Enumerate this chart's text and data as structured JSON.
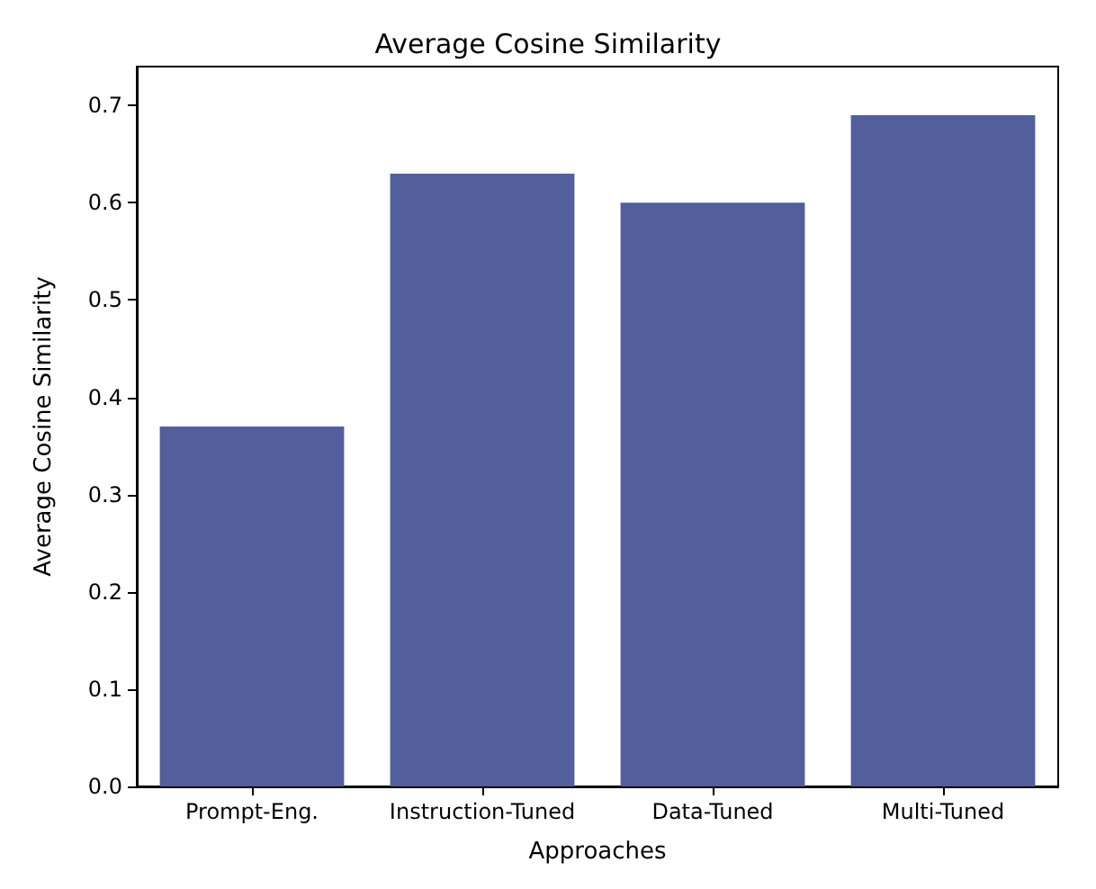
{
  "chart_data": {
    "type": "bar",
    "title": "Average Cosine Similarity",
    "xlabel": "Approaches",
    "ylabel": "Average Cosine Similarity",
    "categories": [
      "Prompt-Eng.",
      "Instruction-Tuned",
      "Data-Tuned",
      "Multi-Tuned"
    ],
    "values": [
      0.37,
      0.63,
      0.6,
      0.69
    ],
    "color": "#535f9c",
    "ylim": [
      0,
      0.74
    ],
    "yticks": [
      {
        "value": 0,
        "label": "0.0"
      },
      {
        "value": 0.1,
        "label": "0.1"
      },
      {
        "value": 0.2,
        "label": "0.2"
      },
      {
        "value": 0.3,
        "label": "0.3"
      },
      {
        "value": 0.4,
        "label": "0.4"
      },
      {
        "value": 0.5,
        "label": "0.5"
      },
      {
        "value": 0.6,
        "label": "0.6"
      },
      {
        "value": 0.7,
        "label": "0.7"
      }
    ],
    "grid": false
  }
}
